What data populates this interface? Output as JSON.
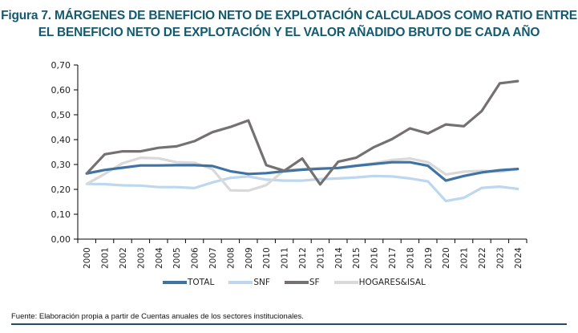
{
  "figure": {
    "title_line1": "Figura 7. MÁRGENES DE BENEFICIO NETO DE EXPLOTACIÓN CALCULADOS COMO RATIO ENTRE",
    "title_line2": "EL BENEFICIO NETO DE EXPLOTACIÓN Y EL VALOR AÑADIDO BRUTO DE CADA AÑO",
    "source": "Fuente: Elaboración propia a partir de Cuentas anuales de los sectores institucionales."
  },
  "chart_data": {
    "type": "line",
    "title": "Figura 7. MÁRGENES DE BENEFICIO NETO DE EXPLOTACIÓN CALCULADOS COMO RATIO ENTRE EL BENEFICIO NETO DE EXPLOTACIÓN Y EL VALOR AÑADIDO BRUTO DE CADA AÑO",
    "xlabel": "",
    "ylabel": "",
    "ylim": [
      0,
      0.7
    ],
    "yticks": [
      "0,00",
      "0,10",
      "0,20",
      "0,30",
      "0,40",
      "0,50",
      "0,60",
      "0,70"
    ],
    "grid": false,
    "legend_position": "bottom",
    "x": [
      "2000",
      "2001",
      "2002",
      "2003",
      "2004",
      "2005",
      "2006",
      "2007",
      "2008",
      "2009",
      "2010",
      "2011",
      "2012",
      "2013",
      "2014",
      "2015",
      "2016",
      "2017",
      "2018",
      "2019",
      "2020",
      "2021",
      "2022",
      "2023",
      "2024"
    ],
    "series": [
      {
        "name": "TOTAL",
        "color": "#3f73a3",
        "values": [
          0.264,
          0.278,
          0.287,
          0.296,
          0.296,
          0.297,
          0.297,
          0.294,
          0.273,
          0.262,
          0.265,
          0.273,
          0.279,
          0.283,
          0.286,
          0.295,
          0.302,
          0.309,
          0.309,
          0.295,
          0.235,
          0.254,
          0.268,
          0.277,
          0.282
        ]
      },
      {
        "name": "SNF",
        "color": "#bcd7ee",
        "values": [
          0.222,
          0.221,
          0.216,
          0.215,
          0.209,
          0.209,
          0.205,
          0.228,
          0.246,
          0.252,
          0.239,
          0.235,
          0.235,
          0.241,
          0.244,
          0.248,
          0.254,
          0.252,
          0.244,
          0.232,
          0.153,
          0.166,
          0.206,
          0.211,
          0.202
        ]
      },
      {
        "name": "SF",
        "color": "#767171",
        "values": [
          0.264,
          0.341,
          0.353,
          0.353,
          0.367,
          0.373,
          0.394,
          0.43,
          0.451,
          0.477,
          0.297,
          0.275,
          0.324,
          0.22,
          0.311,
          0.327,
          0.37,
          0.402,
          0.445,
          0.425,
          0.461,
          0.454,
          0.515,
          0.626,
          0.635
        ]
      },
      {
        "name": "HOGARES&ISAL",
        "color": "#d9d9d9",
        "values": [
          0.222,
          0.262,
          0.305,
          0.327,
          0.325,
          0.309,
          0.307,
          0.281,
          0.196,
          0.195,
          0.217,
          0.277,
          0.282,
          0.286,
          0.285,
          0.295,
          0.305,
          0.318,
          0.324,
          0.309,
          0.26,
          0.271,
          0.275,
          0.271,
          0.282
        ]
      }
    ]
  }
}
